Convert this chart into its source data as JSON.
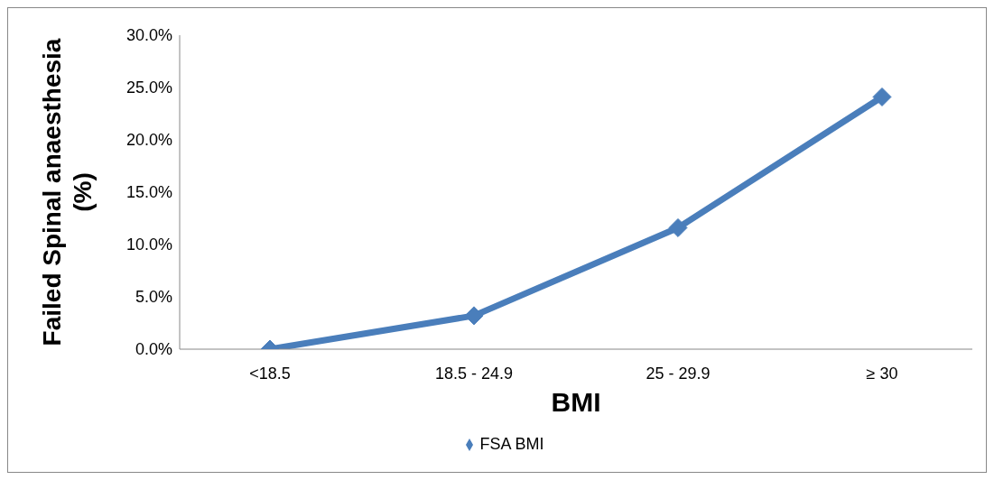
{
  "chart_data": {
    "type": "line",
    "xlabel": "BMI",
    "ylabel": "Failed Spinal anaesthesia (%)",
    "categories": [
      "<18.5",
      "18.5 -  24.9",
      "25 - 29.9",
      "≥ 30"
    ],
    "series": [
      {
        "name": "FSA BMI",
        "color": "#4a7ebb",
        "values": [
          0,
          3.2,
          11.6,
          24.1
        ]
      }
    ],
    "ylim": [
      0,
      30
    ],
    "yticks": [
      {
        "value": 0,
        "label": "0.0%"
      },
      {
        "value": 5,
        "label": "5.0%"
      },
      {
        "value": 10,
        "label": "10.0%"
      },
      {
        "value": 15,
        "label": "15.0%"
      },
      {
        "value": 20,
        "label": "20.0%"
      },
      {
        "value": 25,
        "label": "25.0%"
      },
      {
        "value": 30,
        "label": "30.0%"
      }
    ],
    "grid": false,
    "legend": "bottom",
    "marker": "diamond",
    "line_style": "solid"
  }
}
